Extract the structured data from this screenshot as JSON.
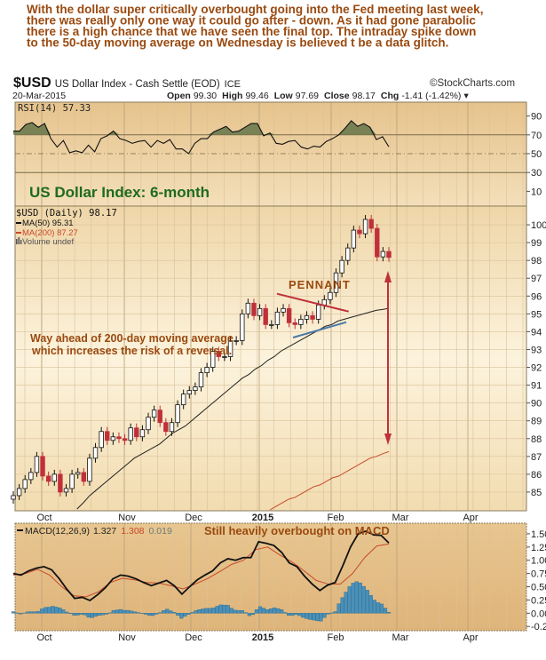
{
  "commentary": [
    "With the dollar super critically overbought going into the Fed meeting last week,",
    "there was really only one way it could go after - down. As it had gone parabolic",
    "there is a high chance that we have seen the final top. The intraday spike down",
    "to the 50-day moving average on Wednesday is believed t be a data glitch."
  ],
  "header": {
    "symbol": "$USD",
    "name": "US Dollar Index - Cash Settle (EOD)",
    "exchange": "ICE",
    "watermark": "©StockCharts.com",
    "date": "20-Mar-2015",
    "open_label": "Open",
    "open": "99.30",
    "high_label": "High",
    "high": "99.46",
    "low_label": "Low",
    "low": "97.69",
    "close_label": "Close",
    "close": "98.17",
    "chg_label": "Chg",
    "chg": "-1.41 (-1.42%)"
  },
  "colors": {
    "annotation": "#9a4a10",
    "title_green": "#1e6b1e",
    "down_candle": "#c0303a",
    "ma50": "#222222",
    "ma200": "#c8482a",
    "rsi_fill": "#6b7a4e",
    "macd_hist": "#4a90b8",
    "pennant_top": "#c0303a",
    "pennant_bottom": "#4a7aa8"
  },
  "chart_data": [
    {
      "type": "line",
      "panel": "RSI",
      "legend": "RSI(14) 57.33",
      "ylim": [
        0,
        100
      ],
      "yticks": [
        "90",
        "70",
        "50",
        "30",
        "10"
      ],
      "ytick_values": [
        90,
        70,
        50,
        30,
        10
      ],
      "reference_lines": [
        70,
        50,
        30
      ],
      "values": [
        74,
        74,
        81,
        83,
        78,
        82,
        66,
        57,
        64,
        51,
        53,
        51,
        59,
        52,
        66,
        69,
        74,
        66,
        64,
        61,
        63,
        64,
        57,
        64,
        61,
        65,
        55,
        55,
        50,
        61,
        66,
        66,
        73,
        76,
        79,
        73,
        74,
        78,
        82,
        82,
        69,
        72,
        61,
        60,
        63,
        64,
        57,
        55,
        58,
        57,
        63,
        66,
        70,
        77,
        85,
        79,
        82,
        78,
        65,
        68,
        57.33
      ]
    },
    {
      "type": "candlestick",
      "panel": "price",
      "title": "US Dollar Index: 6-month",
      "legend": [
        {
          "name": "$USD (Daily) 98.17"
        },
        {
          "name": "MA(50) 95.31"
        },
        {
          "name": "MA(200) 87.27"
        },
        {
          "name": "Volume undef"
        }
      ],
      "ylim": [
        83.95,
        101.05
      ],
      "yticks": [
        "100",
        "99",
        "98",
        "97",
        "96",
        "95",
        "94",
        "93",
        "92",
        "91",
        "90",
        "89",
        "88",
        "87",
        "86",
        "85"
      ],
      "ytick_values": [
        100,
        99,
        98,
        97,
        96,
        95,
        94,
        93,
        92,
        91,
        90,
        89,
        88,
        87,
        86,
        85
      ],
      "x_labels": [
        "Oct",
        "Nov",
        "Dec",
        "2015",
        "Feb",
        "Mar",
        "Apr"
      ],
      "close": [
        84.8,
        85.2,
        85.7,
        86.1,
        87.0,
        85.9,
        85.6,
        86.0,
        85.0,
        85.2,
        86.0,
        86.1,
        85.6,
        86.9,
        87.5,
        88.4,
        87.9,
        88.1,
        88.0,
        87.9,
        88.6,
        88.1,
        88.5,
        89.2,
        89.6,
        88.9,
        88.4,
        88.9,
        89.9,
        90.5,
        90.7,
        90.9,
        91.7,
        92.0,
        92.9,
        92.6,
        92.6,
        93.5,
        93.5,
        95.0,
        95.6,
        94.9,
        95.3,
        94.4,
        94.4,
        95.1,
        95.3,
        94.5,
        94.4,
        94.7,
        94.9,
        94.7,
        95.5,
        95.8,
        96.2,
        97.3,
        98.0,
        98.7,
        99.7,
        99.5,
        100.3,
        99.8,
        98.2,
        98.5,
        98.17
      ],
      "ma50": [
        null,
        null,
        null,
        null,
        null,
        null,
        null,
        null,
        null,
        null,
        84.05,
        84.4,
        84.8,
        85.1,
        85.4,
        85.7,
        86.0,
        86.3,
        86.6,
        86.9,
        87.1,
        87.3,
        87.5,
        87.7,
        88.0,
        88.3,
        88.5,
        88.7,
        89.0,
        89.3,
        89.6,
        89.9,
        90.2,
        90.5,
        90.8,
        91.1,
        91.4,
        91.6,
        91.9,
        92.1,
        92.4,
        92.6,
        92.9,
        93.1,
        93.3,
        93.5,
        93.7,
        93.9,
        94.1,
        94.3,
        94.4,
        94.6,
        94.7,
        94.8,
        94.9,
        95.0,
        95.1,
        95.2,
        95.25,
        95.31
      ],
      "ma200": [
        null,
        null,
        null,
        null,
        null,
        null,
        null,
        null,
        null,
        null,
        null,
        null,
        null,
        null,
        null,
        null,
        null,
        null,
        null,
        null,
        null,
        null,
        null,
        null,
        null,
        null,
        null,
        null,
        null,
        null,
        null,
        null,
        null,
        null,
        null,
        null,
        null,
        null,
        null,
        null,
        null,
        84.0,
        84.2,
        84.4,
        84.6,
        84.7,
        84.9,
        85.1,
        85.3,
        85.4,
        85.6,
        85.8,
        85.9,
        86.1,
        86.3,
        86.5,
        86.7,
        86.9,
        87.0,
        87.15,
        87.27
      ],
      "annotations": [
        "PENNANT",
        "Way ahead of 200-day moving average",
        "which increases the risk of a reversal."
      ]
    },
    {
      "type": "line",
      "panel": "MACD",
      "legend": {
        "label": "MACD(12,26,9)",
        "macd": "1.327",
        "signal": "1.308",
        "histogram": "0.019"
      },
      "annotation": "Still heavily overbought on MACD",
      "ylim": [
        -0.33,
        1.7
      ],
      "yticks": [
        "1.50",
        "1.25",
        "1.00",
        "0.75",
        "0.50",
        "0.25",
        "0.00",
        "-0.25"
      ],
      "ytick_values": [
        1.5,
        1.25,
        1.0,
        0.75,
        0.5,
        0.25,
        0.0,
        -0.25
      ],
      "macd": [
        0.75,
        0.72,
        0.8,
        0.85,
        0.88,
        0.82,
        0.65,
        0.45,
        0.28,
        0.3,
        0.24,
        0.35,
        0.48,
        0.65,
        0.72,
        0.7,
        0.65,
        0.58,
        0.52,
        0.57,
        0.62,
        0.52,
        0.36,
        0.5,
        0.63,
        0.72,
        0.8,
        0.95,
        1.03,
        1.0,
        1.05,
        1.05,
        1.35,
        1.32,
        1.28,
        1.15,
        0.95,
        0.88,
        0.7,
        0.55,
        0.43,
        0.53,
        0.58,
        0.9,
        1.25,
        1.5,
        1.55,
        1.48,
        1.47,
        1.327
      ],
      "signal": [
        0.72,
        0.75,
        0.83,
        0.72,
        0.5,
        0.33,
        0.31,
        0.4,
        0.58,
        0.66,
        0.63,
        0.58,
        0.57,
        0.52,
        0.46,
        0.55,
        0.65,
        0.78,
        0.92,
        1.0,
        1.2,
        1.25,
        1.1,
        0.97,
        0.8,
        0.62,
        0.55,
        0.55,
        0.75,
        1.05,
        1.27,
        1.308
      ]
    }
  ]
}
